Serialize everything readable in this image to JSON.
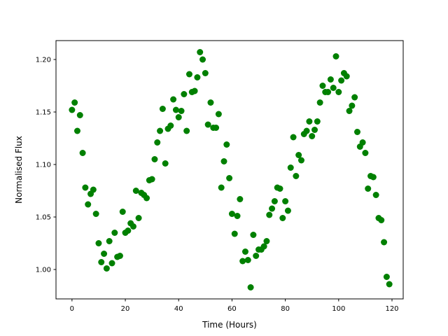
{
  "chart_data": {
    "type": "scatter",
    "title": "",
    "xlabel": "Time (Hours)",
    "ylabel": "Normalised Flux",
    "xlim": [
      -6,
      124.2
    ],
    "ylim": [
      0.972,
      1.218
    ],
    "xticks": [
      0,
      20,
      40,
      60,
      80,
      100,
      120
    ],
    "xtick_labels": [
      "0",
      "20",
      "40",
      "60",
      "80",
      "100",
      "120"
    ],
    "yticks": [
      1.0,
      1.05,
      1.1,
      1.15,
      1.2
    ],
    "ytick_labels": [
      "1.00",
      "1.05",
      "1.10",
      "1.15",
      "1.20"
    ],
    "grid": false,
    "color": "#008000",
    "x": [
      0,
      1,
      2,
      3,
      4,
      5,
      6,
      7,
      8,
      9,
      10,
      11,
      12,
      13,
      14,
      15,
      16,
      17,
      18,
      19,
      20,
      21,
      22,
      23,
      24,
      25,
      26,
      27,
      28,
      29,
      30,
      31,
      32,
      33,
      34,
      35,
      36,
      37,
      38,
      39,
      40,
      41,
      42,
      43,
      44,
      45,
      46,
      47,
      48,
      49,
      50,
      51,
      52,
      53,
      54,
      55,
      56,
      57,
      58,
      59,
      60,
      61,
      62,
      63,
      64,
      65,
      66,
      67,
      68,
      69,
      70,
      71,
      72,
      73,
      74,
      75,
      76,
      77,
      78,
      79,
      80,
      81,
      82,
      83,
      84,
      85,
      86,
      87,
      88,
      89,
      90,
      91,
      92,
      93,
      94,
      95,
      96,
      97,
      98,
      99,
      100,
      101,
      102,
      103,
      104,
      105,
      106,
      107,
      108,
      109,
      110,
      111,
      112,
      113,
      114,
      115,
      116,
      117,
      118,
      119
    ],
    "y": [
      1.152,
      1.159,
      1.132,
      1.147,
      1.111,
      1.078,
      1.062,
      1.072,
      1.076,
      1.053,
      1.025,
      1.007,
      1.015,
      1.001,
      1.027,
      1.006,
      1.035,
      1.012,
      1.013,
      1.055,
      1.035,
      1.037,
      1.044,
      1.041,
      1.075,
      1.049,
      1.073,
      1.071,
      1.068,
      1.085,
      1.086,
      1.105,
      1.121,
      1.132,
      1.153,
      1.101,
      1.134,
      1.137,
      1.162,
      1.152,
      1.145,
      1.151,
      1.167,
      1.132,
      1.186,
      1.169,
      1.17,
      1.183,
      1.207,
      1.2,
      1.187,
      1.138,
      1.159,
      1.135,
      1.135,
      1.148,
      1.078,
      1.103,
      1.119,
      1.087,
      1.053,
      1.034,
      1.051,
      1.067,
      1.008,
      1.017,
      1.009,
      0.983,
      1.033,
      1.013,
      1.019,
      1.019,
      1.022,
      1.027,
      1.052,
      1.058,
      1.065,
      1.078,
      1.077,
      1.049,
      1.065,
      1.056,
      1.097,
      1.126,
      1.089,
      1.109,
      1.104,
      1.129,
      1.132,
      1.141,
      1.127,
      1.133,
      1.141,
      1.159,
      1.175,
      1.169,
      1.169,
      1.181,
      1.173,
      1.203,
      1.169,
      1.18,
      1.187,
      1.184,
      1.151,
      1.156,
      1.164,
      1.131,
      1.117,
      1.121,
      1.111,
      1.077,
      1.089,
      1.088,
      1.071,
      1.049,
      1.047,
      1.026,
      0.993,
      0.986
    ]
  }
}
